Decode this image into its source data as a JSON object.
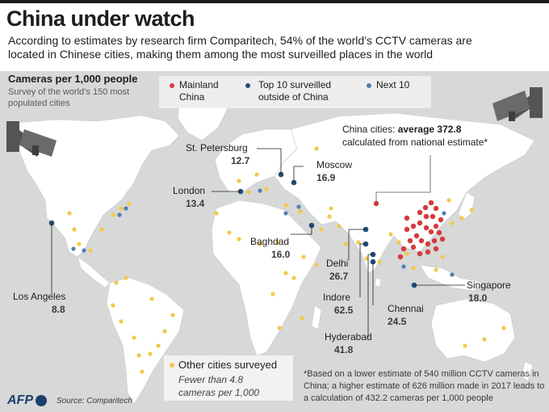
{
  "title": "China under watch",
  "subtitle": "According to estimates by research firm Comparitech, 54% of the world’s CCTV cameras are located in Chinese cities, making them among the most surveilled places in the world",
  "metric_label": "Cameras per 1,000 people",
  "survey_note": "Survey of the world’s 150 most populated cities",
  "legend": {
    "mainland": {
      "label": "Mainland China",
      "color": "#d63b3b"
    },
    "top10": {
      "label": "Top 10 surveilled outside of China",
      "color": "#1f4e79"
    },
    "next10": {
      "label": "Next 10",
      "color": "#4f81b3"
    }
  },
  "china_note": {
    "prefix": "China cities: ",
    "bold": "average 372.8",
    "suffix": "calculated from national estimate*"
  },
  "cities": {
    "st_petersburg": {
      "name": "St. Petersburg",
      "value": "12.7"
    },
    "moscow": {
      "name": "Moscow",
      "value": "16.9"
    },
    "london": {
      "name": "London",
      "value": "13.4"
    },
    "baghdad": {
      "name": "Baghdad",
      "value": "16.0"
    },
    "delhi": {
      "name": "Delhi",
      "value": "26.7"
    },
    "indore": {
      "name": "Indore",
      "value": "62.5"
    },
    "chennai": {
      "name": "Chennai",
      "value": "24.5"
    },
    "hyderabad": {
      "name": "Hyderabad",
      "value": "41.8"
    },
    "singapore": {
      "name": "Singapore",
      "value": "18.0"
    },
    "los_angeles": {
      "name": "Los Angeles",
      "value": "8.8"
    }
  },
  "other_cities": {
    "label": "Other cities surveyed",
    "desc": "Fewer than 4.8 cameras per 1,000",
    "color": "#f2c94c"
  },
  "footnote": "*Based on a lower estimate of 540 million CCTV cameras in China; a higher estimate of 626 million made in 2017 leads to a calculation of 432.2 cameras per 1,000 people",
  "logo": "AFP",
  "source": "Source: Comparitech",
  "colors": {
    "land": "#ffffff",
    "ocean": "#d7d8d8",
    "other_dot": "#f2c94c",
    "mainland_dot": "#d63b3b",
    "top10_dot": "#1f4e79",
    "next10_dot": "#4f81b3",
    "afp_blue": "#1c3f6e"
  }
}
